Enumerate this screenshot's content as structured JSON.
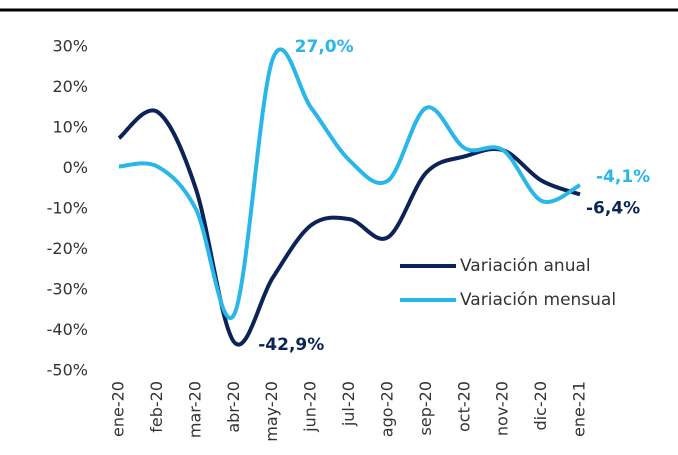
{
  "chart_data": {
    "type": "line",
    "categories": [
      "ene-20",
      "feb-20",
      "mar-20",
      "abr-20",
      "may-20",
      "jun-20",
      "jul-20",
      "ago-20",
      "sep-20",
      "oct-20",
      "nov-20",
      "dic-20",
      "ene-21"
    ],
    "series": [
      {
        "name": "Variación anual",
        "color": "#0b2357",
        "values": [
          7.5,
          14,
          -5,
          -42.9,
          -27,
          -14,
          -12.5,
          -17,
          -1,
          3,
          4.5,
          -3,
          -6.4
        ],
        "value_labels": [
          null,
          null,
          null,
          "-42,9%",
          null,
          null,
          null,
          null,
          null,
          null,
          null,
          null,
          "-6,4%"
        ]
      },
      {
        "name": "Variación mensual",
        "color": "#29b6e9",
        "values": [
          0.5,
          0.5,
          -10,
          -36,
          27.0,
          15,
          2,
          -3,
          15,
          5,
          4.5,
          -8,
          -4.1
        ],
        "value_labels": [
          null,
          null,
          null,
          null,
          "27,0%",
          null,
          null,
          null,
          null,
          null,
          null,
          null,
          "-4,1%"
        ]
      }
    ],
    "ylim": [
      -50,
      30
    ],
    "yticks": [
      {
        "value": -50,
        "label": "-50%"
      },
      {
        "value": -40,
        "label": "-40%"
      },
      {
        "value": -30,
        "label": "-30%"
      },
      {
        "value": -20,
        "label": "-20%"
      },
      {
        "value": -10,
        "label": "-10%"
      },
      {
        "value": 0,
        "label": "0%"
      },
      {
        "value": 10,
        "label": "10%"
      },
      {
        "value": 20,
        "label": "20%"
      },
      {
        "value": 30,
        "label": "30%"
      }
    ],
    "grid": false,
    "legend": "center right"
  }
}
